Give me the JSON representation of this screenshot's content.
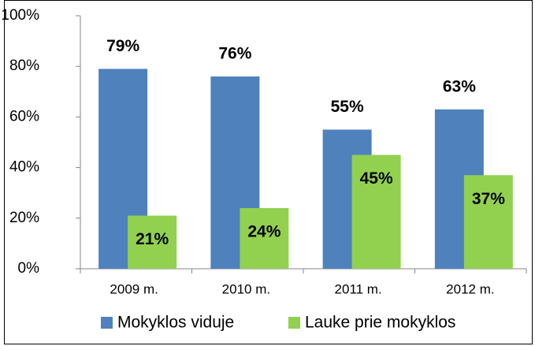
{
  "chart_data": {
    "type": "bar",
    "categories": [
      "2009 m.",
      "2010 m.",
      "2011 m.",
      "2012 m."
    ],
    "series": [
      {
        "name": "Mokyklos viduje",
        "color": "#4f81bd",
        "values": [
          79,
          76,
          55,
          63
        ],
        "value_labels": [
          "79%",
          "76%",
          "55%",
          "63%"
        ]
      },
      {
        "name": "Lauke prie mokyklos",
        "color": "#92d050",
        "values": [
          21,
          24,
          45,
          37
        ],
        "value_labels": [
          "21%",
          "24%",
          "45%",
          "37%"
        ]
      }
    ],
    "ylim": [
      0,
      100
    ],
    "yticks": [
      {
        "value": 0,
        "label": "0%"
      },
      {
        "value": 20,
        "label": "20%"
      },
      {
        "value": 40,
        "label": "40%"
      },
      {
        "value": 60,
        "label": "60%"
      },
      {
        "value": 80,
        "label": "80%"
      },
      {
        "value": 100,
        "label": "100%"
      }
    ],
    "grid": false,
    "legend": "bottom"
  }
}
